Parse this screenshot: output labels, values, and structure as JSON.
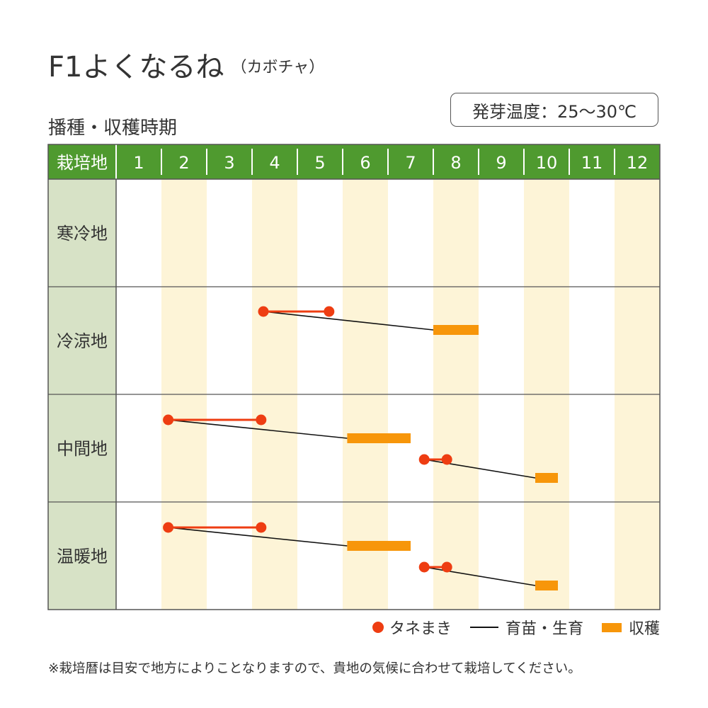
{
  "header": {
    "title": "F1よくなるね",
    "subtitle": "（カボチャ）",
    "section_title": "播種・収穫時期",
    "germination_temp": "発芽温度：25～30℃"
  },
  "colors": {
    "header_green": "#4f9a2f",
    "region_bg": "#d7e2c6",
    "stripe": "#fdf4d7",
    "sowing": "#ee3d12",
    "harvest": "#f7960a",
    "growth": "#111111",
    "grid": "#555555"
  },
  "chart_data": {
    "type": "table",
    "corner_label": "栽培地",
    "months": [
      "1",
      "2",
      "3",
      "4",
      "5",
      "6",
      "7",
      "8",
      "9",
      "10",
      "11",
      "12"
    ],
    "regions": [
      {
        "name": "寒冷地",
        "crops": []
      },
      {
        "name": "冷涼地",
        "crops": [
          {
            "sow": [
              4.25,
              5.7
            ],
            "harvest": [
              8.0,
              9.0
            ]
          }
        ]
      },
      {
        "name": "中間地",
        "crops": [
          {
            "sow": [
              2.15,
              4.2
            ],
            "harvest": [
              6.1,
              7.5
            ]
          },
          {
            "sow": [
              7.8,
              8.3
            ],
            "harvest": [
              10.25,
              10.75
            ]
          }
        ]
      },
      {
        "name": "温暖地",
        "crops": [
          {
            "sow": [
              2.15,
              4.2
            ],
            "harvest": [
              6.1,
              7.5
            ]
          },
          {
            "sow": [
              7.8,
              8.3
            ],
            "harvest": [
              10.25,
              10.75
            ]
          }
        ]
      }
    ]
  },
  "legend": {
    "sowing": "タネまき",
    "growth": "育苗・生育",
    "harvest": "収穫"
  },
  "footnote": "※栽培暦は目安で地方によりことなりますので、貴地の気候に合わせて栽培してください。"
}
